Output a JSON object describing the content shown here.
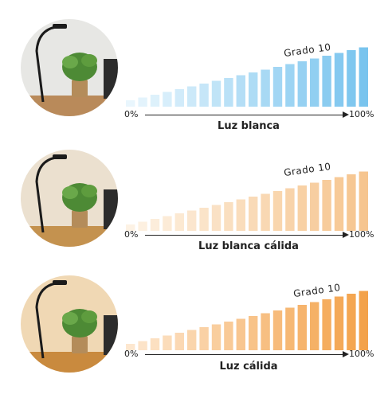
{
  "rows": [
    {
      "grade_label": "Grado 10",
      "min_label": "0%",
      "max_label": "100%",
      "title": "Luz blanca",
      "light_color": "#e9f6fd",
      "dark_color": "#79c4ee",
      "bars": 20,
      "photo_tone": "#e6e6e3"
    },
    {
      "grade_label": "Grado 10",
      "min_label": "0%",
      "max_label": "100%",
      "title": "Luz blanca cálida",
      "light_color": "#fdf2e4",
      "dark_color": "#f6c58f",
      "bars": 20,
      "photo_tone": "#eadfcf"
    },
    {
      "grade_label": "Grado 10",
      "min_label": "0%",
      "max_label": "100%",
      "title": "Luz cálida",
      "light_color": "#fde7cf",
      "dark_color": "#f3a24a",
      "bars": 20,
      "photo_tone": "#f0d9b8"
    }
  ]
}
